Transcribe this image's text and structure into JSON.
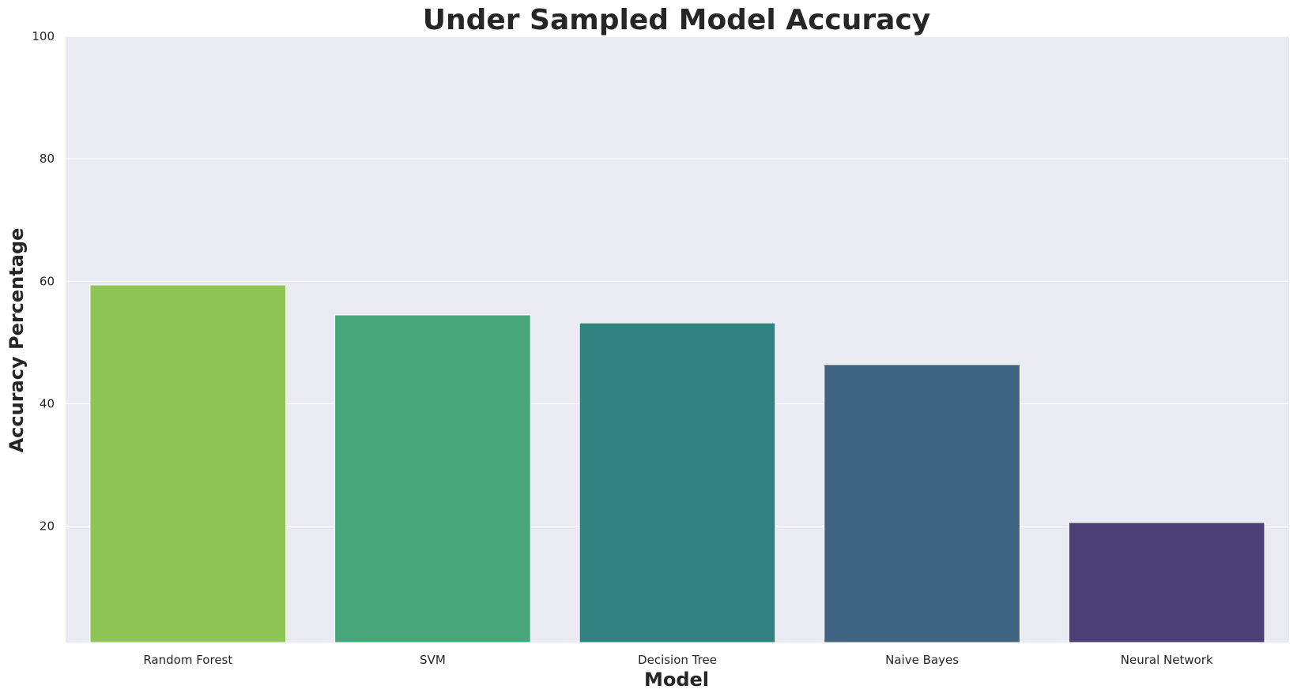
{
  "chart_data": {
    "type": "bar",
    "title": "Under Sampled Model Accuracy",
    "xlabel": "Model",
    "ylabel": "Accuracy Percentage",
    "categories": [
      "Random Forest",
      "SVM",
      "Decision Tree",
      "Naive Bayes",
      "Neural Network"
    ],
    "values": [
      59.4,
      54.5,
      53.2,
      46.4,
      20.6
    ],
    "colors": [
      "#8fc556",
      "#47a77a",
      "#318181",
      "#3f6582",
      "#4b4177"
    ],
    "ylim": [
      1,
      100
    ],
    "yticks": [
      20,
      40,
      60,
      80,
      100
    ],
    "grid": true,
    "background": "#eaeaf2",
    "legend": "none"
  }
}
